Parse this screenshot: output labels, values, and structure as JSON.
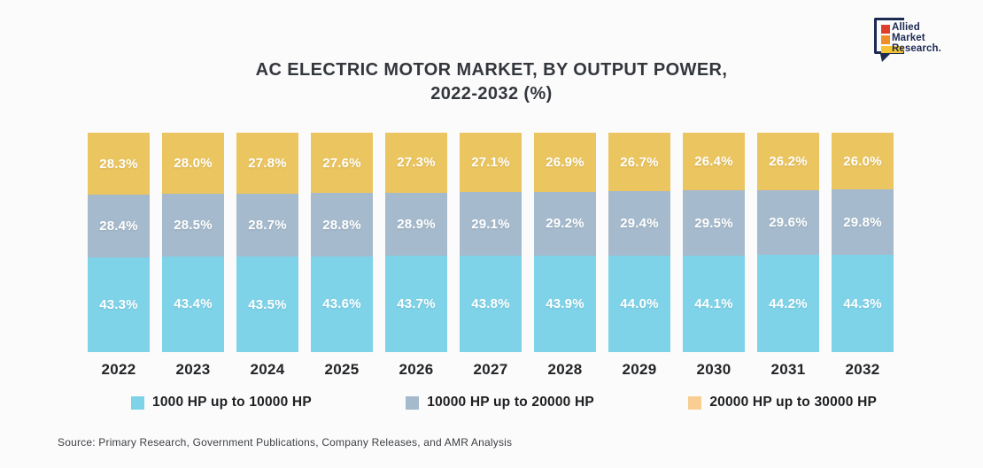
{
  "header": {
    "logo": {
      "lines": [
        "Allied",
        "Market",
        "Research."
      ],
      "colors": {
        "bubble": "#1d2b52",
        "square_red": "#dd3f2b",
        "square_orange": "#ee8f27",
        "bar_yellow": "#f4c433"
      }
    }
  },
  "title": {
    "line1": "AC ELECTRIC MOTOR MARKET, BY OUTPUT POWER,",
    "line2": "2022-2032 (%)"
  },
  "chart_data": {
    "type": "bar",
    "stacked": true,
    "categories": [
      "2022",
      "2023",
      "2024",
      "2025",
      "2026",
      "2027",
      "2028",
      "2029",
      "2030",
      "2031",
      "2032"
    ],
    "series": [
      {
        "name": "1000 HP up to 10000 HP",
        "color": "#7ed3e9",
        "values": [
          43.3,
          43.4,
          43.5,
          43.6,
          43.7,
          43.8,
          43.9,
          44.0,
          44.1,
          44.2,
          44.3
        ]
      },
      {
        "name": "10000 HP up to 20000 HP",
        "color": "#a5bacc",
        "values": [
          28.4,
          28.5,
          28.7,
          28.8,
          28.9,
          29.1,
          29.2,
          29.4,
          29.5,
          29.6,
          29.8
        ]
      },
      {
        "name": "20000 HP up to 30000 HP",
        "color": "#ebc55f",
        "values": [
          28.3,
          28.0,
          27.8,
          27.6,
          27.3,
          27.1,
          26.9,
          26.7,
          26.4,
          26.2,
          26.0
        ]
      }
    ],
    "value_suffix": "%",
    "value_decimals": 1,
    "ylim": [
      0,
      100
    ],
    "grid": false,
    "legend_position": "bottom",
    "title": "AC ELECTRIC MOTOR MARKET, BY OUTPUT POWER, 2022-2032 (%)",
    "xlabel": "",
    "ylabel": ""
  },
  "legend": {
    "items": [
      {
        "label": "1000 HP up to 10000 HP",
        "swatch_color": "#7ed3e9"
      },
      {
        "label": "10000 HP up to 20000 HP",
        "swatch_color": "#a5bacc"
      },
      {
        "label": "20000 HP up to 30000 HP",
        "swatch_color": "#f8ce92"
      }
    ]
  },
  "source": {
    "text": "Source: Primary Research, Government Publications, Company Releases, and AMR Analysis"
  }
}
